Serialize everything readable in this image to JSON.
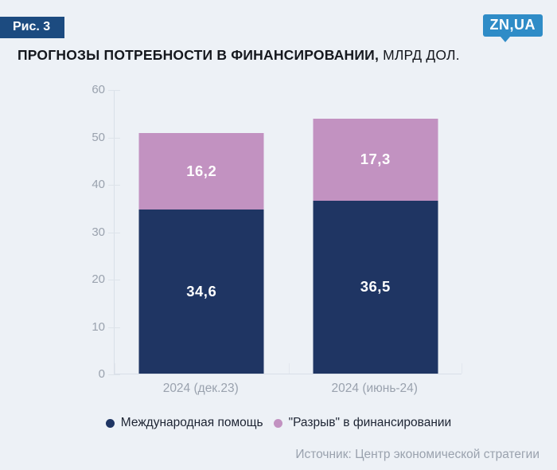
{
  "figure_badge": "Рис. 3",
  "logo": "ZN,UA",
  "title": {
    "bold": "ПРОГНОЗЫ ПОТРЕБНОСТИ В ФИНАНСИРОВАНИИ,",
    "regular": " МЛРД ДОЛ."
  },
  "source": "Источник: Центр экономической стратегии",
  "colors": {
    "background": "#edf1f6",
    "navy": "#1f3563",
    "pink": "#c292c1",
    "badge_blue": "#1c4b80",
    "logo_blue": "#2f8cc7",
    "axis_text": "#9aa2ae",
    "axis_line": "#d9dfe8",
    "title_text": "#15181e",
    "legend_text": "#1d2433"
  },
  "chart_data": {
    "type": "bar",
    "stacked": true,
    "title": "ПРОГНОЗЫ ПОТРЕБНОСТИ В ФИНАНСИРОВАНИИ, МЛРД ДОЛ.",
    "categories": [
      "2024 (дек.23)",
      "2024 (июнь-24)"
    ],
    "series": [
      {
        "name": "Международная помощь",
        "color_key": "navy",
        "values": [
          34.6,
          36.5
        ]
      },
      {
        "name": "\"Разрыв\" в финансировании",
        "color_key": "pink",
        "values": [
          16.2,
          17.3
        ]
      }
    ],
    "totals": [
      50.8,
      53.8
    ],
    "xlabel": "",
    "ylabel": "",
    "ylim": [
      0,
      60
    ],
    "yticks": [
      0,
      10,
      20,
      30,
      40,
      50,
      60
    ],
    "grid": false,
    "legend_position": "bottom",
    "decimal_separator": ","
  }
}
